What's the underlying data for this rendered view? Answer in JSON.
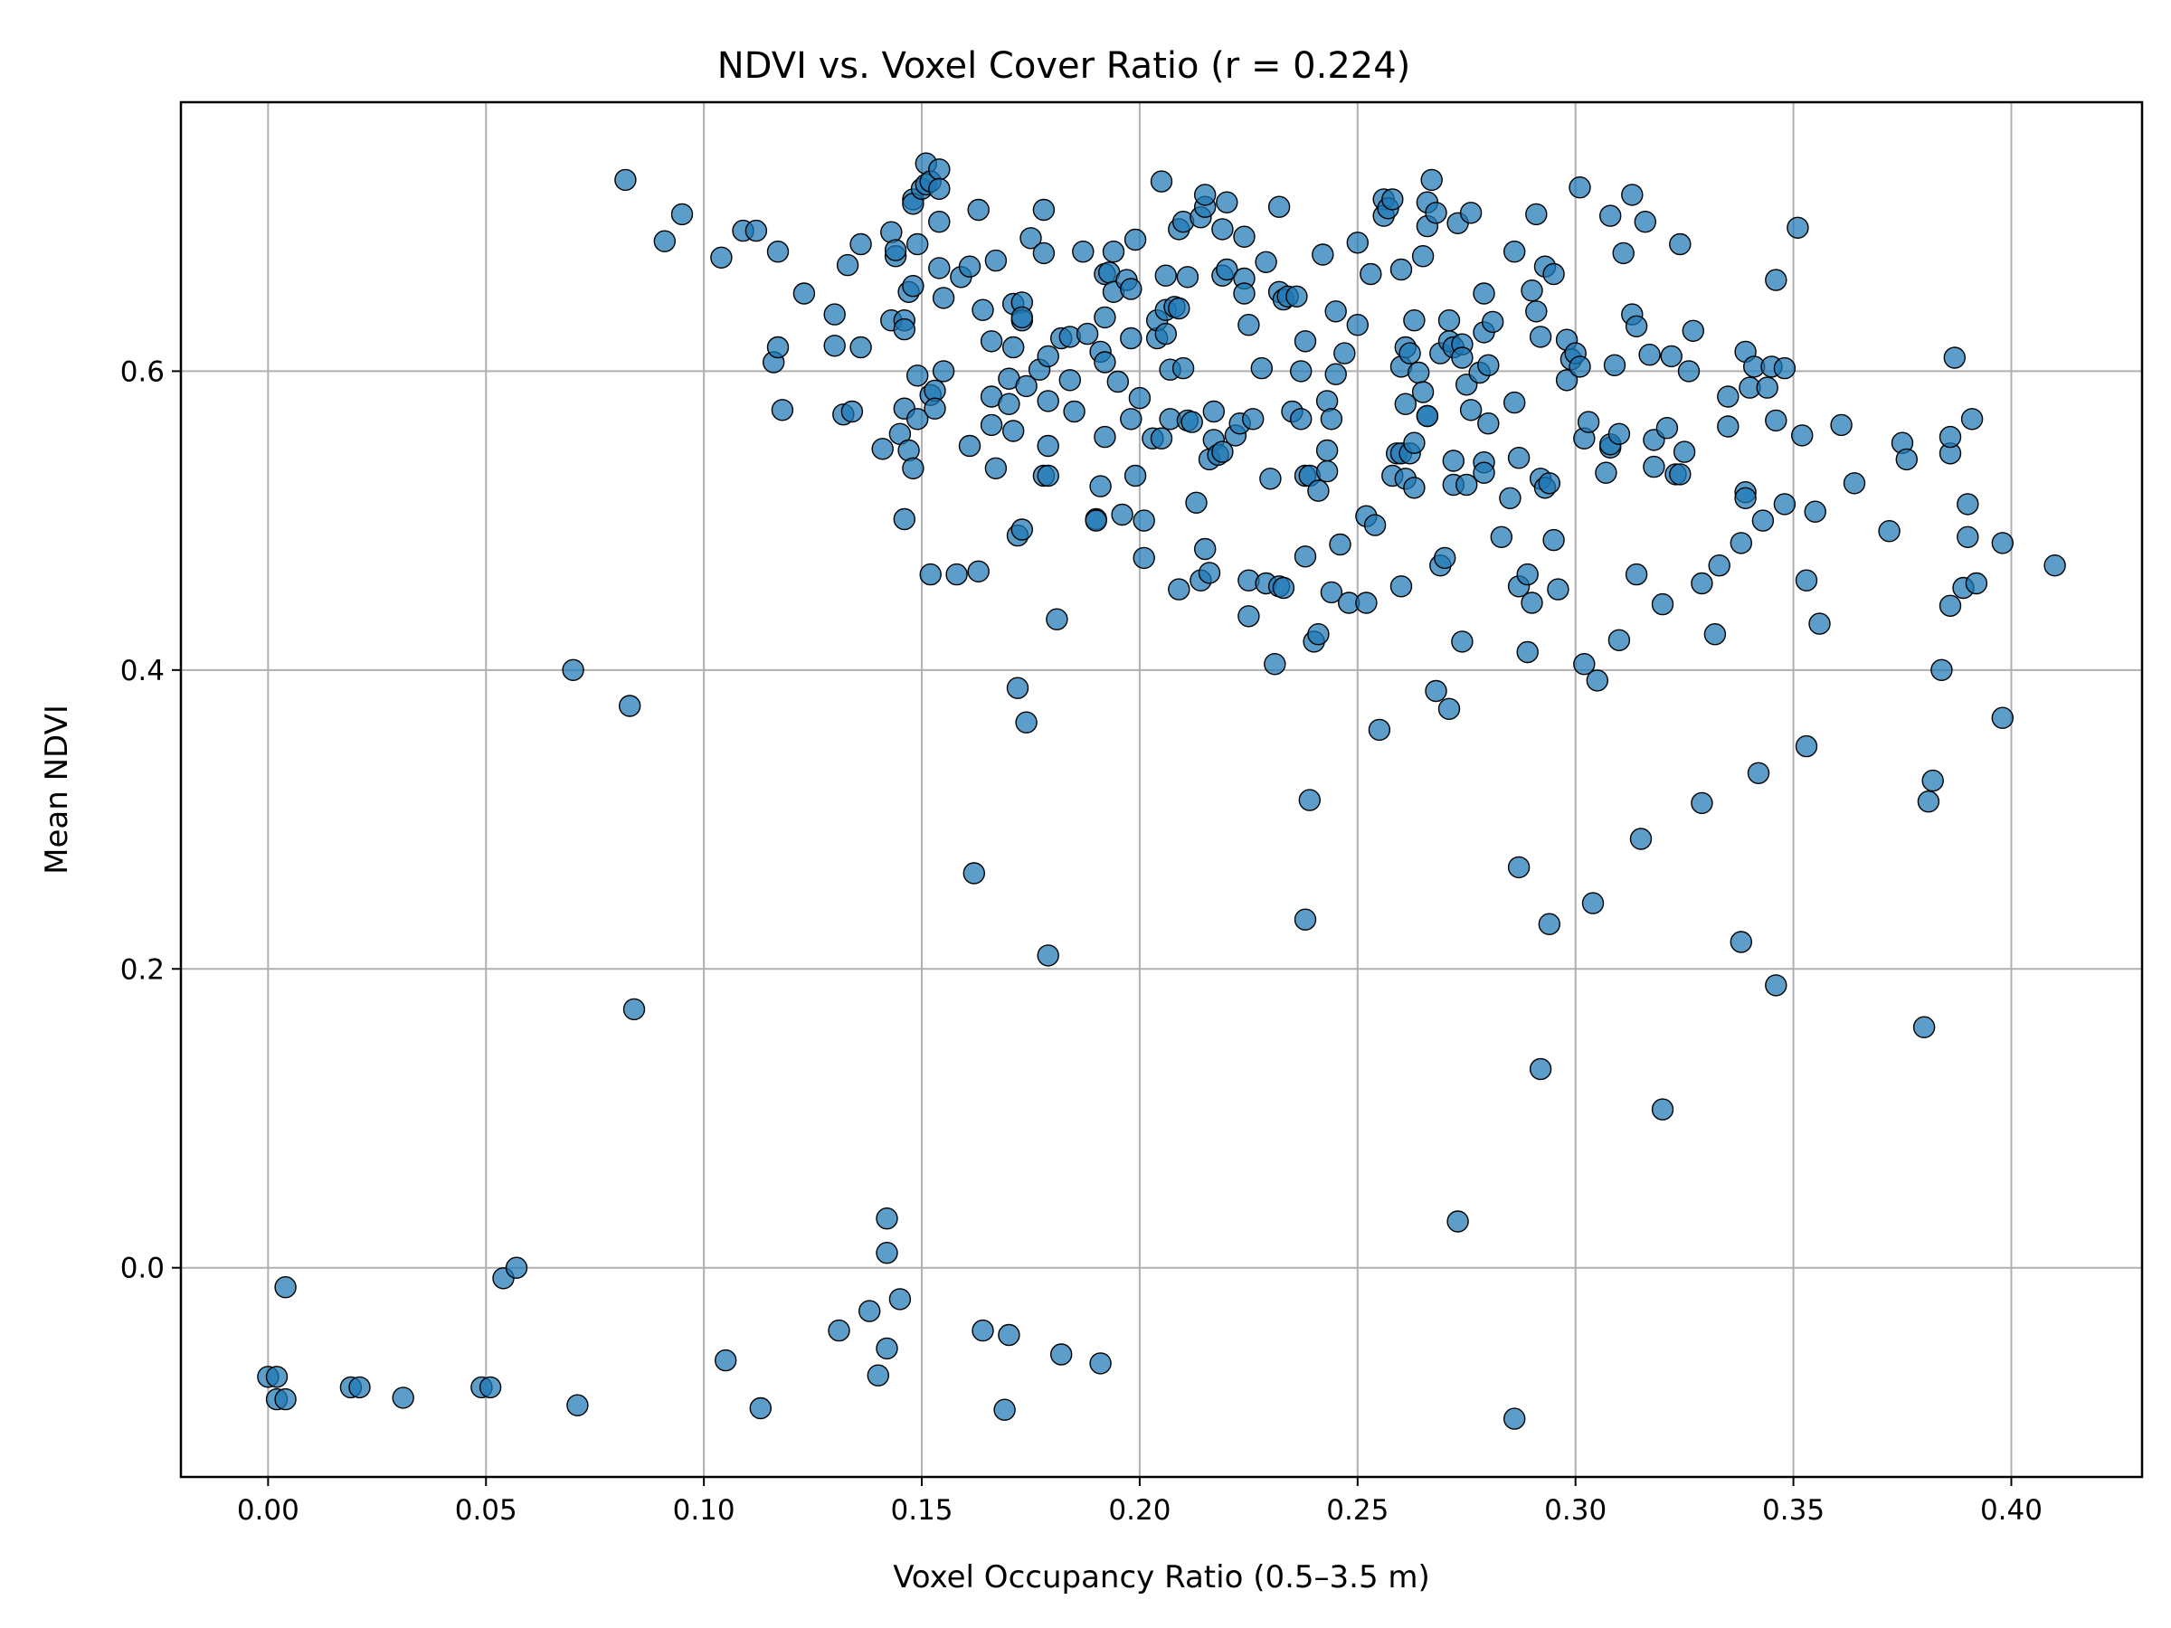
{
  "chart_data": {
    "type": "scatter",
    "title": "NDVI vs. Voxel Cover Ratio (r = 0.224)",
    "xlabel": "Voxel Occupancy Ratio (0.5–3.5 m)",
    "ylabel": "Mean NDVI",
    "xlim": [
      -0.02,
      0.43
    ],
    "ylim": [
      -0.14,
      0.78
    ],
    "xticks": [
      0.0,
      0.05,
      0.1,
      0.15,
      0.2,
      0.25,
      0.3,
      0.35,
      0.4
    ],
    "xtick_labels": [
      "0.00",
      "0.05",
      "0.10",
      "0.15",
      "0.20",
      "0.25",
      "0.30",
      "0.35",
      "0.40"
    ],
    "yticks": [
      0.0,
      0.2,
      0.4,
      0.6
    ],
    "ytick_labels": [
      "0.0",
      "0.2",
      "0.4",
      "0.6"
    ],
    "grid": true,
    "marker_color": "#1f77b4",
    "marker_edge_color": "#000000",
    "points": [
      [
        0.0,
        -0.073
      ],
      [
        0.002,
        -0.073
      ],
      [
        0.002,
        -0.088
      ],
      [
        0.004,
        -0.088
      ],
      [
        0.004,
        -0.013
      ],
      [
        0.019,
        -0.08
      ],
      [
        0.021,
        -0.08
      ],
      [
        0.031,
        -0.087
      ],
      [
        0.049,
        -0.08
      ],
      [
        0.051,
        -0.08
      ],
      [
        0.054,
        -0.007
      ],
      [
        0.057,
        0.0
      ],
      [
        0.07,
        0.4
      ],
      [
        0.071,
        -0.092
      ],
      [
        0.082,
        0.728
      ],
      [
        0.083,
        0.376
      ],
      [
        0.084,
        0.173
      ],
      [
        0.091,
        0.687
      ],
      [
        0.095,
        0.705
      ],
      [
        0.104,
        0.676
      ],
      [
        0.105,
        -0.062
      ],
      [
        0.109,
        0.694
      ],
      [
        0.112,
        0.694
      ],
      [
        0.113,
        -0.094
      ],
      [
        0.116,
        0.606
      ],
      [
        0.117,
        0.68
      ],
      [
        0.117,
        0.616
      ],
      [
        0.118,
        0.574
      ],
      [
        0.123,
        0.652
      ],
      [
        0.13,
        0.638
      ],
      [
        0.13,
        0.617
      ],
      [
        0.131,
        -0.042
      ],
      [
        0.132,
        0.571
      ],
      [
        0.133,
        0.671
      ],
      [
        0.134,
        0.573
      ],
      [
        0.136,
        0.685
      ],
      [
        0.136,
        0.616
      ],
      [
        0.138,
        -0.029
      ],
      [
        0.14,
        -0.072
      ],
      [
        0.141,
        0.548
      ],
      [
        0.142,
        0.01
      ],
      [
        0.142,
        0.033
      ],
      [
        0.142,
        -0.054
      ],
      [
        0.143,
        0.634
      ],
      [
        0.143,
        0.693
      ],
      [
        0.144,
        0.677
      ],
      [
        0.144,
        0.681
      ],
      [
        0.145,
        0.558
      ],
      [
        0.145,
        -0.021
      ],
      [
        0.146,
        0.501
      ],
      [
        0.146,
        0.575
      ],
      [
        0.146,
        0.634
      ],
      [
        0.146,
        0.628
      ],
      [
        0.147,
        0.653
      ],
      [
        0.147,
        0.547
      ],
      [
        0.148,
        0.657
      ],
      [
        0.148,
        0.715
      ],
      [
        0.148,
        0.712
      ],
      [
        0.148,
        0.535
      ],
      [
        0.149,
        0.568
      ],
      [
        0.149,
        0.597
      ],
      [
        0.149,
        0.685
      ],
      [
        0.15,
        0.722
      ],
      [
        0.151,
        0.739
      ],
      [
        0.151,
        0.725
      ],
      [
        0.152,
        0.727
      ],
      [
        0.152,
        0.584
      ],
      [
        0.152,
        0.464
      ],
      [
        0.153,
        0.587
      ],
      [
        0.153,
        0.575
      ],
      [
        0.154,
        0.735
      ],
      [
        0.154,
        0.722
      ],
      [
        0.154,
        0.669
      ],
      [
        0.154,
        0.7
      ],
      [
        0.155,
        0.649
      ],
      [
        0.155,
        0.6
      ],
      [
        0.158,
        0.464
      ],
      [
        0.159,
        0.663
      ],
      [
        0.161,
        0.67
      ],
      [
        0.161,
        0.55
      ],
      [
        0.162,
        0.264
      ],
      [
        0.163,
        0.708
      ],
      [
        0.163,
        0.466
      ],
      [
        0.164,
        -0.042
      ],
      [
        0.164,
        0.641
      ],
      [
        0.166,
        0.62
      ],
      [
        0.166,
        0.583
      ],
      [
        0.166,
        0.564
      ],
      [
        0.167,
        0.674
      ],
      [
        0.167,
        0.535
      ],
      [
        0.169,
        -0.095
      ],
      [
        0.17,
        0.595
      ],
      [
        0.17,
        0.578
      ],
      [
        0.17,
        -0.045
      ],
      [
        0.171,
        0.616
      ],
      [
        0.171,
        0.56
      ],
      [
        0.171,
        0.645
      ],
      [
        0.172,
        0.49
      ],
      [
        0.172,
        0.388
      ],
      [
        0.173,
        0.646
      ],
      [
        0.173,
        0.634
      ],
      [
        0.173,
        0.636
      ],
      [
        0.173,
        0.494
      ],
      [
        0.174,
        0.59
      ],
      [
        0.174,
        0.365
      ],
      [
        0.175,
        0.689
      ],
      [
        0.177,
        0.601
      ],
      [
        0.178,
        0.679
      ],
      [
        0.178,
        0.708
      ],
      [
        0.178,
        0.53
      ],
      [
        0.179,
        0.53
      ],
      [
        0.179,
        0.58
      ],
      [
        0.179,
        0.55
      ],
      [
        0.179,
        0.209
      ],
      [
        0.179,
        0.61
      ],
      [
        0.181,
        0.434
      ],
      [
        0.182,
        0.622
      ],
      [
        0.182,
        -0.058
      ],
      [
        0.184,
        0.623
      ],
      [
        0.184,
        0.594
      ],
      [
        0.185,
        0.573
      ],
      [
        0.187,
        0.68
      ],
      [
        0.188,
        0.625
      ],
      [
        0.19,
        0.501
      ],
      [
        0.19,
        0.5
      ],
      [
        0.191,
        0.613
      ],
      [
        0.191,
        0.523
      ],
      [
        0.191,
        -0.064
      ],
      [
        0.192,
        0.665
      ],
      [
        0.192,
        0.556
      ],
      [
        0.192,
        0.606
      ],
      [
        0.192,
        0.636
      ],
      [
        0.193,
        0.666
      ],
      [
        0.194,
        0.653
      ],
      [
        0.194,
        0.68
      ],
      [
        0.195,
        0.593
      ],
      [
        0.196,
        0.504
      ],
      [
        0.197,
        0.661
      ],
      [
        0.198,
        0.655
      ],
      [
        0.198,
        0.568
      ],
      [
        0.198,
        0.622
      ],
      [
        0.199,
        0.53
      ],
      [
        0.199,
        0.688
      ],
      [
        0.2,
        0.582
      ],
      [
        0.201,
        0.5
      ],
      [
        0.201,
        0.475
      ],
      [
        0.203,
        0.555
      ],
      [
        0.204,
        0.622
      ],
      [
        0.204,
        0.634
      ],
      [
        0.205,
        0.727
      ],
      [
        0.205,
        0.555
      ],
      [
        0.206,
        0.641
      ],
      [
        0.206,
        0.664
      ],
      [
        0.206,
        0.625
      ],
      [
        0.207,
        0.601
      ],
      [
        0.207,
        0.568
      ],
      [
        0.208,
        0.643
      ],
      [
        0.209,
        0.695
      ],
      [
        0.209,
        0.642
      ],
      [
        0.209,
        0.454
      ],
      [
        0.21,
        0.602
      ],
      [
        0.21,
        0.7
      ],
      [
        0.211,
        0.567
      ],
      [
        0.211,
        0.663
      ],
      [
        0.212,
        0.566
      ],
      [
        0.213,
        0.512
      ],
      [
        0.214,
        0.703
      ],
      [
        0.214,
        0.46
      ],
      [
        0.215,
        0.71
      ],
      [
        0.215,
        0.481
      ],
      [
        0.215,
        0.718
      ],
      [
        0.216,
        0.465
      ],
      [
        0.216,
        0.541
      ],
      [
        0.217,
        0.554
      ],
      [
        0.217,
        0.573
      ],
      [
        0.218,
        0.544
      ],
      [
        0.219,
        0.695
      ],
      [
        0.219,
        0.664
      ],
      [
        0.219,
        0.546
      ],
      [
        0.22,
        0.713
      ],
      [
        0.22,
        0.668
      ],
      [
        0.222,
        0.557
      ],
      [
        0.223,
        0.565
      ],
      [
        0.224,
        0.69
      ],
      [
        0.224,
        0.662
      ],
      [
        0.224,
        0.652
      ],
      [
        0.225,
        0.46
      ],
      [
        0.225,
        0.436
      ],
      [
        0.225,
        0.631
      ],
      [
        0.226,
        0.568
      ],
      [
        0.228,
        0.602
      ],
      [
        0.229,
        0.673
      ],
      [
        0.229,
        0.458
      ],
      [
        0.23,
        0.528
      ],
      [
        0.231,
        0.404
      ],
      [
        0.232,
        0.71
      ],
      [
        0.232,
        0.456
      ],
      [
        0.232,
        0.653
      ],
      [
        0.233,
        0.648
      ],
      [
        0.233,
        0.455
      ],
      [
        0.234,
        0.65
      ],
      [
        0.235,
        0.573
      ],
      [
        0.236,
        0.65
      ],
      [
        0.237,
        0.568
      ],
      [
        0.237,
        0.6
      ],
      [
        0.238,
        0.62
      ],
      [
        0.238,
        0.53
      ],
      [
        0.238,
        0.476
      ],
      [
        0.238,
        0.233
      ],
      [
        0.239,
        0.53
      ],
      [
        0.239,
        0.313
      ],
      [
        0.24,
        0.419
      ],
      [
        0.241,
        0.52
      ],
      [
        0.241,
        0.424
      ],
      [
        0.242,
        0.678
      ],
      [
        0.243,
        0.58
      ],
      [
        0.243,
        0.547
      ],
      [
        0.243,
        0.533
      ],
      [
        0.244,
        0.568
      ],
      [
        0.244,
        0.452
      ],
      [
        0.245,
        0.64
      ],
      [
        0.245,
        0.598
      ],
      [
        0.246,
        0.484
      ],
      [
        0.247,
        0.612
      ],
      [
        0.248,
        0.445
      ],
      [
        0.25,
        0.686
      ],
      [
        0.25,
        0.631
      ],
      [
        0.252,
        0.503
      ],
      [
        0.252,
        0.445
      ],
      [
        0.253,
        0.665
      ],
      [
        0.254,
        0.497
      ],
      [
        0.255,
        0.36
      ],
      [
        0.256,
        0.715
      ],
      [
        0.256,
        0.704
      ],
      [
        0.257,
        0.709
      ],
      [
        0.258,
        0.715
      ],
      [
        0.258,
        0.53
      ],
      [
        0.259,
        0.545
      ],
      [
        0.26,
        0.668
      ],
      [
        0.26,
        0.456
      ],
      [
        0.26,
        0.545
      ],
      [
        0.26,
        0.603
      ],
      [
        0.261,
        0.616
      ],
      [
        0.261,
        0.578
      ],
      [
        0.261,
        0.528
      ],
      [
        0.262,
        0.612
      ],
      [
        0.262,
        0.545
      ],
      [
        0.263,
        0.634
      ],
      [
        0.263,
        0.552
      ],
      [
        0.263,
        0.522
      ],
      [
        0.264,
        0.599
      ],
      [
        0.265,
        0.677
      ],
      [
        0.265,
        0.586
      ],
      [
        0.266,
        0.57
      ],
      [
        0.266,
        0.57
      ],
      [
        0.266,
        0.713
      ],
      [
        0.266,
        0.697
      ],
      [
        0.267,
        0.728
      ],
      [
        0.268,
        0.706
      ],
      [
        0.268,
        0.386
      ],
      [
        0.269,
        0.612
      ],
      [
        0.269,
        0.47
      ],
      [
        0.27,
        0.475
      ],
      [
        0.271,
        0.634
      ],
      [
        0.271,
        0.62
      ],
      [
        0.271,
        0.374
      ],
      [
        0.272,
        0.616
      ],
      [
        0.272,
        0.54
      ],
      [
        0.272,
        0.524
      ],
      [
        0.273,
        0.699
      ],
      [
        0.273,
        0.031
      ],
      [
        0.274,
        0.419
      ],
      [
        0.274,
        0.618
      ],
      [
        0.274,
        0.609
      ],
      [
        0.275,
        0.591
      ],
      [
        0.275,
        0.524
      ],
      [
        0.276,
        0.574
      ],
      [
        0.276,
        0.706
      ],
      [
        0.278,
        0.599
      ],
      [
        0.279,
        0.652
      ],
      [
        0.279,
        0.626
      ],
      [
        0.279,
        0.539
      ],
      [
        0.279,
        0.532
      ],
      [
        0.28,
        0.604
      ],
      [
        0.28,
        0.565
      ],
      [
        0.281,
        0.633
      ],
      [
        0.283,
        0.489
      ],
      [
        0.285,
        0.515
      ],
      [
        0.286,
        0.68
      ],
      [
        0.286,
        0.579
      ],
      [
        0.286,
        -0.101
      ],
      [
        0.287,
        0.542
      ],
      [
        0.287,
        0.456
      ],
      [
        0.287,
        0.268
      ],
      [
        0.289,
        0.464
      ],
      [
        0.289,
        0.412
      ],
      [
        0.29,
        0.654
      ],
      [
        0.29,
        0.445
      ],
      [
        0.291,
        0.705
      ],
      [
        0.291,
        0.64
      ],
      [
        0.292,
        0.623
      ],
      [
        0.292,
        0.528
      ],
      [
        0.292,
        0.133
      ],
      [
        0.293,
        0.522
      ],
      [
        0.293,
        0.67
      ],
      [
        0.294,
        0.525
      ],
      [
        0.294,
        0.23
      ],
      [
        0.295,
        0.665
      ],
      [
        0.295,
        0.487
      ],
      [
        0.296,
        0.454
      ],
      [
        0.298,
        0.594
      ],
      [
        0.298,
        0.621
      ],
      [
        0.299,
        0.608
      ],
      [
        0.3,
        0.612
      ],
      [
        0.301,
        0.603
      ],
      [
        0.301,
        0.723
      ],
      [
        0.302,
        0.404
      ],
      [
        0.302,
        0.555
      ],
      [
        0.303,
        0.566
      ],
      [
        0.304,
        0.244
      ],
      [
        0.305,
        0.393
      ],
      [
        0.307,
        0.532
      ],
      [
        0.308,
        0.704
      ],
      [
        0.308,
        0.549
      ],
      [
        0.308,
        0.551
      ],
      [
        0.309,
        0.604
      ],
      [
        0.31,
        0.558
      ],
      [
        0.31,
        0.42
      ],
      [
        0.311,
        0.679
      ],
      [
        0.313,
        0.638
      ],
      [
        0.313,
        0.718
      ],
      [
        0.314,
        0.63
      ],
      [
        0.314,
        0.464
      ],
      [
        0.315,
        0.287
      ],
      [
        0.316,
        0.7
      ],
      [
        0.317,
        0.611
      ],
      [
        0.318,
        0.554
      ],
      [
        0.318,
        0.536
      ],
      [
        0.32,
        0.444
      ],
      [
        0.32,
        0.106
      ],
      [
        0.321,
        0.562
      ],
      [
        0.322,
        0.61
      ],
      [
        0.323,
        0.531
      ],
      [
        0.324,
        0.685
      ],
      [
        0.324,
        0.531
      ],
      [
        0.325,
        0.546
      ],
      [
        0.326,
        0.6
      ],
      [
        0.327,
        0.627
      ],
      [
        0.329,
        0.458
      ],
      [
        0.329,
        0.311
      ],
      [
        0.332,
        0.424
      ],
      [
        0.333,
        0.47
      ],
      [
        0.335,
        0.563
      ],
      [
        0.335,
        0.583
      ],
      [
        0.338,
        0.485
      ],
      [
        0.338,
        0.218
      ],
      [
        0.339,
        0.613
      ],
      [
        0.339,
        0.519
      ],
      [
        0.339,
        0.515
      ],
      [
        0.34,
        0.589
      ],
      [
        0.341,
        0.603
      ],
      [
        0.342,
        0.331
      ],
      [
        0.343,
        0.5
      ],
      [
        0.344,
        0.589
      ],
      [
        0.345,
        0.603
      ],
      [
        0.346,
        0.567
      ],
      [
        0.346,
        0.661
      ],
      [
        0.346,
        0.189
      ],
      [
        0.348,
        0.602
      ],
      [
        0.348,
        0.511
      ],
      [
        0.351,
        0.696
      ],
      [
        0.352,
        0.557
      ],
      [
        0.353,
        0.349
      ],
      [
        0.353,
        0.46
      ],
      [
        0.355,
        0.506
      ],
      [
        0.356,
        0.431
      ],
      [
        0.361,
        0.564
      ],
      [
        0.364,
        0.525
      ],
      [
        0.372,
        0.493
      ],
      [
        0.375,
        0.552
      ],
      [
        0.376,
        0.541
      ],
      [
        0.38,
        0.161
      ],
      [
        0.381,
        0.312
      ],
      [
        0.382,
        0.326
      ],
      [
        0.384,
        0.4
      ],
      [
        0.386,
        0.443
      ],
      [
        0.386,
        0.545
      ],
      [
        0.386,
        0.556
      ],
      [
        0.387,
        0.609
      ],
      [
        0.389,
        0.455
      ],
      [
        0.39,
        0.489
      ],
      [
        0.39,
        0.511
      ],
      [
        0.391,
        0.568
      ],
      [
        0.392,
        0.458
      ],
      [
        0.398,
        0.485
      ],
      [
        0.398,
        0.368
      ],
      [
        0.41,
        0.47
      ]
    ]
  }
}
